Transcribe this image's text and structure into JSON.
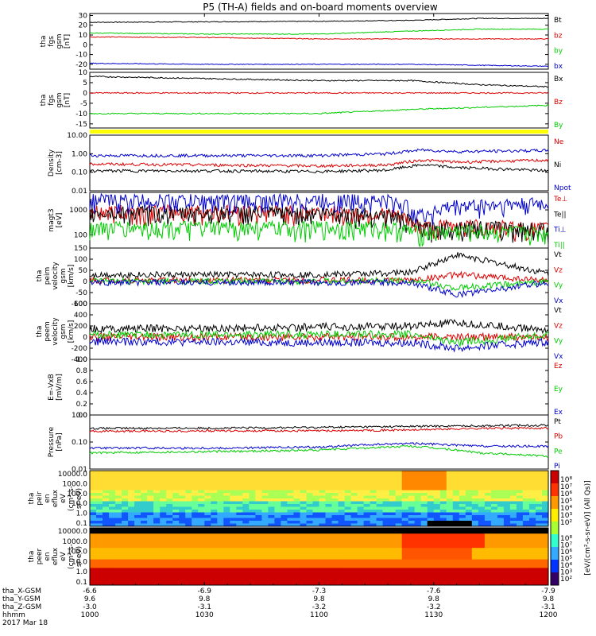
{
  "title": "P5 (TH-A) fields and on-board moments overview",
  "colors": {
    "black": "#000000",
    "red": "#dd0000",
    "green": "#00cc00",
    "blue": "#0000cc",
    "yellow": "#ffff00"
  },
  "chart_data": [
    {
      "type": "line",
      "panel": "fgs_mag",
      "ylabel": [
        "tha",
        "fgs",
        "gsm",
        "[nT]"
      ],
      "yticks": [
        "30",
        "20",
        "10",
        "0",
        "-10",
        "-20"
      ],
      "ylim": [
        -25,
        32
      ],
      "series": [
        {
          "name": "Bt",
          "color": "#000000",
          "x": [
            10.0,
            10.5,
            11.0,
            11.4,
            11.7,
            12.0
          ],
          "y": [
            23,
            23.5,
            24,
            25,
            27,
            27
          ]
        },
        {
          "name": "bz",
          "color": "#dd0000",
          "x": [
            10.0,
            10.5,
            11.0,
            11.4,
            11.7,
            12.0
          ],
          "y": [
            8,
            7.5,
            6,
            6,
            6,
            6
          ]
        },
        {
          "name": "by",
          "color": "#00cc00",
          "x": [
            10.0,
            10.5,
            11.0,
            11.4,
            11.7,
            12.0
          ],
          "y": [
            12,
            11,
            11,
            14,
            16,
            16
          ]
        },
        {
          "name": "bx",
          "color": "#0000cc",
          "x": [
            10.0,
            10.5,
            11.0,
            11.4,
            11.7,
            12.0
          ],
          "y": [
            -19,
            -20,
            -20,
            -20,
            -21,
            -22
          ]
        }
      ]
    },
    {
      "type": "line",
      "panel": "fgs_dsl",
      "ylabel": [
        "tha",
        "fgs",
        "gsm",
        "[nT]"
      ],
      "yticks": [
        "10",
        "5",
        "0",
        "-5",
        "-10",
        "-15"
      ],
      "ylim": [
        -17,
        10
      ],
      "series": [
        {
          "name": "Bx",
          "color": "#000000",
          "x": [
            10.0,
            10.5,
            11.0,
            11.4,
            11.7,
            12.0
          ],
          "y": [
            8,
            7,
            6,
            6,
            4,
            3
          ]
        },
        {
          "name": "Bz",
          "color": "#dd0000",
          "x": [
            10.0,
            10.5,
            11.0,
            11.4,
            11.7,
            12.0
          ],
          "y": [
            0,
            0,
            0,
            0,
            0,
            0
          ]
        },
        {
          "name": "By",
          "color": "#00cc00",
          "x": [
            10.0,
            10.5,
            11.0,
            11.4,
            11.7,
            12.0
          ],
          "y": [
            -10,
            -10,
            -10,
            -8,
            -7,
            -6
          ]
        }
      ]
    },
    {
      "type": "line",
      "panel": "density",
      "ylabel": [
        "Density",
        "[cm-3]"
      ],
      "yticks": [
        "10.00",
        "1.00",
        "0.10",
        "0.01"
      ],
      "ylim": [
        0.01,
        10
      ],
      "log": true,
      "series": [
        {
          "name": "Ne",
          "color": "#dd0000",
          "x": [
            10.0,
            10.5,
            11.0,
            11.3,
            11.45,
            11.6,
            12.0
          ],
          "y": [
            0.28,
            0.25,
            0.22,
            0.25,
            0.45,
            0.35,
            0.45
          ]
        },
        {
          "name": "Ni",
          "color": "#000000",
          "x": [
            10.0,
            10.5,
            11.0,
            11.3,
            11.45,
            11.6,
            12.0
          ],
          "y": [
            0.12,
            0.12,
            0.11,
            0.13,
            0.25,
            0.18,
            0.12
          ]
        },
        {
          "name": "Npot",
          "color": "#0000cc",
          "x": [
            10.0,
            10.5,
            11.0,
            11.3,
            11.45,
            11.6,
            12.0
          ],
          "y": [
            0.8,
            0.8,
            0.8,
            1.0,
            1.6,
            1.3,
            1.5
          ]
        }
      ]
    },
    {
      "type": "line",
      "panel": "temperature",
      "ylabel": [
        "magt3",
        "[eV]"
      ],
      "yticks": [
        "1000",
        "100"
      ],
      "ylim": [
        30,
        5000
      ],
      "log": true,
      "series": [
        {
          "name": "Te⊥",
          "color": "#dd0000",
          "x": [
            10.0,
            10.6,
            11.0,
            11.3,
            11.45,
            11.6,
            12.0
          ],
          "y": [
            900,
            900,
            850,
            700,
            200,
            250,
            180
          ]
        },
        {
          "name": "Te||",
          "color": "#000000",
          "x": [
            10.0,
            10.6,
            11.0,
            11.3,
            11.45,
            11.6,
            12.0
          ],
          "y": [
            800,
            800,
            780,
            650,
            180,
            220,
            170
          ]
        },
        {
          "name": "Ti⊥",
          "color": "#0000cc",
          "x": [
            10.0,
            10.6,
            11.0,
            11.3,
            11.45,
            11.6,
            12.0
          ],
          "y": [
            2500,
            2400,
            2500,
            2400,
            600,
            1500,
            1800
          ]
        },
        {
          "name": "Ti||",
          "color": "#00cc00",
          "x": [
            10.0,
            10.6,
            11.0,
            11.3,
            11.45,
            11.6,
            12.0
          ],
          "y": [
            200,
            200,
            200,
            200,
            120,
            150,
            120
          ]
        }
      ]
    },
    {
      "type": "line",
      "panel": "ion_velocity",
      "ylabel": [
        "tha",
        "peim",
        "velocity",
        "gsm",
        "[km/s]"
      ],
      "yticks": [
        "150",
        "100",
        "50",
        "0",
        "-50",
        "-100"
      ],
      "ylim": [
        -100,
        150
      ],
      "series": [
        {
          "name": "Vt",
          "color": "#000000",
          "x": [
            10.0,
            10.6,
            11.0,
            11.4,
            11.6,
            12.0
          ],
          "y": [
            30,
            30,
            30,
            40,
            120,
            35
          ]
        },
        {
          "name": "Vz",
          "color": "#dd0000",
          "x": [
            10.0,
            10.6,
            11.0,
            11.4,
            11.6,
            12.0
          ],
          "y": [
            5,
            5,
            5,
            5,
            30,
            5
          ]
        },
        {
          "name": "Vy",
          "color": "#00cc00",
          "x": [
            10.0,
            10.6,
            11.0,
            11.4,
            11.6,
            12.0
          ],
          "y": [
            0,
            0,
            0,
            5,
            -30,
            0
          ]
        },
        {
          "name": "Vx",
          "color": "#0000cc",
          "x": [
            10.0,
            10.6,
            11.0,
            11.4,
            11.6,
            12.0
          ],
          "y": [
            -5,
            -5,
            -5,
            -5,
            -60,
            -5
          ]
        }
      ]
    },
    {
      "type": "line",
      "panel": "electron_velocity",
      "ylabel": [
        "tha",
        "peem",
        "velocity",
        "gsm",
        "[km/s]"
      ],
      "yticks": [
        "600",
        "400",
        "200",
        "0",
        "-200",
        "-400"
      ],
      "ylim": [
        -400,
        600
      ],
      "series": [
        {
          "name": "Vt",
          "color": "#000000",
          "x": [
            10.0,
            10.6,
            11.0,
            11.4,
            11.6,
            12.0
          ],
          "y": [
            150,
            160,
            180,
            200,
            250,
            130
          ]
        },
        {
          "name": "Vz",
          "color": "#dd0000",
          "x": [
            10.0,
            10.6,
            11.0,
            11.4,
            11.6,
            12.0
          ],
          "y": [
            0,
            0,
            0,
            0,
            0,
            0
          ]
        },
        {
          "name": "Vy",
          "color": "#00cc00",
          "x": [
            10.0,
            10.6,
            11.0,
            11.4,
            11.6,
            12.0
          ],
          "y": [
            40,
            40,
            50,
            50,
            -100,
            40
          ]
        },
        {
          "name": "Vx",
          "color": "#0000cc",
          "x": [
            10.0,
            10.6,
            11.0,
            11.4,
            11.6,
            12.0
          ],
          "y": [
            -80,
            -90,
            -100,
            -100,
            -200,
            -80
          ]
        }
      ]
    },
    {
      "type": "line",
      "panel": "electric_field",
      "ylabel": [
        "E=-VxB",
        "[mV/m]"
      ],
      "yticks": [
        "1.0",
        "0.8",
        "0.6",
        "0.4",
        "0.2",
        "0.0"
      ],
      "ylim": [
        0,
        1
      ],
      "series": [
        {
          "name": "Ez",
          "color": "#dd0000",
          "x": [],
          "y": []
        },
        {
          "name": "Ey",
          "color": "#00cc00",
          "x": [],
          "y": []
        },
        {
          "name": "Ex",
          "color": "#0000cc",
          "x": [],
          "y": []
        }
      ]
    },
    {
      "type": "line",
      "panel": "pressure",
      "ylabel": [
        "Pressure",
        "[nPa]"
      ],
      "yticks": [
        "1.00",
        "0.10",
        "0.01"
      ],
      "ylim": [
        0.01,
        1
      ],
      "log": true,
      "series": [
        {
          "name": "Pt",
          "color": "#000000",
          "x": [
            10.0,
            10.6,
            11.0,
            11.4,
            11.7,
            12.0
          ],
          "y": [
            0.32,
            0.33,
            0.35,
            0.38,
            0.4,
            0.42
          ]
        },
        {
          "name": "Pb",
          "color": "#dd0000",
          "x": [
            10.0,
            10.6,
            11.0,
            11.4,
            11.7,
            12.0
          ],
          "y": [
            0.25,
            0.26,
            0.26,
            0.28,
            0.32,
            0.33
          ]
        },
        {
          "name": "Pe",
          "color": "#00cc00",
          "x": [
            10.0,
            10.6,
            11.0,
            11.4,
            11.7,
            12.0
          ],
          "y": [
            0.04,
            0.045,
            0.05,
            0.07,
            0.04,
            0.03
          ]
        },
        {
          "name": "Pi",
          "color": "#0000cc",
          "x": [
            10.0,
            10.6,
            11.0,
            11.4,
            11.7,
            12.0
          ],
          "y": [
            0.06,
            0.06,
            0.065,
            0.09,
            0.07,
            0.07
          ]
        }
      ]
    },
    {
      "type": "heatmap",
      "panel": "ion_spectrogram",
      "ylabel": [
        "tha",
        "peir",
        "en",
        "eflux",
        "eV",
        "(cm²-s-",
        "sr-eV)"
      ],
      "yticks": [
        "10000.0",
        "1000.0",
        "100.0",
        "10.0",
        "1.0",
        "0.1"
      ]
    },
    {
      "type": "heatmap",
      "panel": "electron_spectrogram",
      "ylabel": [
        "tha",
        "peer",
        "en",
        "eflux",
        "eV",
        "(cm²-s-",
        "sr-eV)"
      ],
      "yticks": [
        "10000.0",
        "1000.0",
        "100.0",
        "10.0",
        "1.0",
        "0.1"
      ]
    }
  ],
  "colorbar": {
    "label": "[eV/(cm²-s-sr-eV)] (All Qs)]",
    "ticks_top": [
      "10⁸",
      "10⁷",
      "10⁶",
      "10⁵",
      "10⁴",
      "10³",
      "10²"
    ],
    "ticks_bottom": [
      "10⁸",
      "10⁷",
      "10⁶",
      "10⁵",
      "10⁴",
      "10³",
      "10²"
    ]
  },
  "xaxis": {
    "rows": [
      {
        "label": "tha_X-GSM",
        "values": [
          "-6.6",
          "-6.9",
          "-7.3",
          "-7.6",
          "-7.9"
        ]
      },
      {
        "label": "tha_Y-GSM",
        "values": [
          "9.6",
          "9.8",
          "9.8",
          "9.8",
          "9.8"
        ]
      },
      {
        "label": "tha_Z-GSM",
        "values": [
          "-3.0",
          "-3.1",
          "-3.2",
          "-3.2",
          "-3.1"
        ]
      },
      {
        "label": "hhmm",
        "values": [
          "1000",
          "1030",
          "1100",
          "1130",
          "1200"
        ]
      }
    ],
    "date": "2017 Mar 18"
  }
}
